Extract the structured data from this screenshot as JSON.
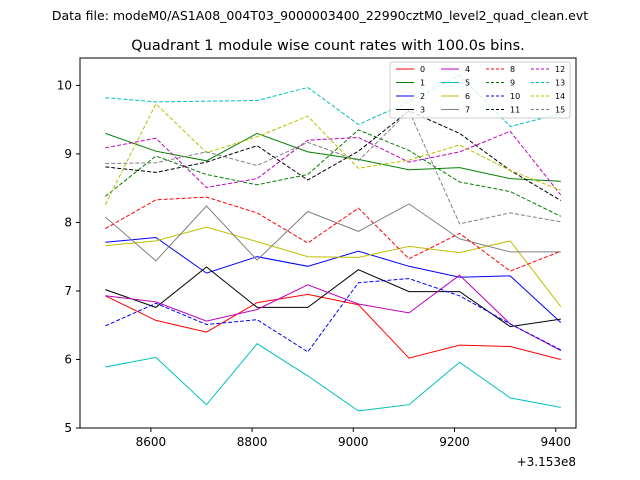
{
  "suptitle": "Data file: modeM0/AS1A08_004T03_9000003400_22990cztM0_level2_quad_clean.evt",
  "chart_data": {
    "type": "line",
    "title": "Quadrant 1 module wise count rates with 100.0s bins.",
    "xlabel": "",
    "ylabel": "",
    "x_offset_label": "+3.153e8",
    "xlim": [
      8460,
      9440
    ],
    "ylim": [
      5,
      10.4
    ],
    "xticks": [
      8600,
      8800,
      9000,
      9200,
      9400
    ],
    "yticks": [
      5,
      6,
      7,
      8,
      9,
      10
    ],
    "grid": false,
    "legend_position": "top-right",
    "legend_columns": 4,
    "x": [
      8510,
      8610,
      8710,
      8810,
      8910,
      9010,
      9110,
      9210,
      9310,
      9410
    ],
    "series": [
      {
        "name": "0",
        "color": "#ff0000",
        "style": "solid",
        "values": [
          6.93,
          6.57,
          6.4,
          6.83,
          6.95,
          6.8,
          6.02,
          6.21,
          6.19,
          6.0
        ]
      },
      {
        "name": "1",
        "color": "#008000",
        "style": "solid",
        "values": [
          9.3,
          9.04,
          8.9,
          9.3,
          9.03,
          8.92,
          8.77,
          8.8,
          8.64,
          8.6
        ]
      },
      {
        "name": "2",
        "color": "#0000ff",
        "style": "solid",
        "values": [
          7.71,
          7.78,
          7.26,
          7.5,
          7.36,
          7.58,
          7.36,
          7.2,
          7.22,
          6.54
        ]
      },
      {
        "name": "3",
        "color": "#000000",
        "style": "solid",
        "values": [
          7.02,
          6.76,
          7.35,
          6.76,
          6.76,
          7.31,
          6.99,
          6.99,
          6.48,
          6.59
        ]
      },
      {
        "name": "4",
        "color": "#bf00bf",
        "style": "solid",
        "values": [
          6.93,
          6.84,
          6.56,
          6.73,
          7.09,
          6.81,
          6.68,
          7.23,
          6.52,
          6.13
        ]
      },
      {
        "name": "5",
        "color": "#00bfbf",
        "style": "solid",
        "values": [
          5.89,
          6.03,
          5.34,
          6.23,
          5.76,
          5.25,
          5.34,
          5.96,
          5.44,
          5.3
        ]
      },
      {
        "name": "6",
        "color": "#bfbf00",
        "style": "solid",
        "values": [
          7.66,
          7.73,
          7.93,
          7.72,
          7.5,
          7.49,
          7.65,
          7.56,
          7.73,
          6.77
        ]
      },
      {
        "name": "7",
        "color": "#808080",
        "style": "solid",
        "values": [
          8.08,
          7.44,
          8.24,
          7.45,
          8.16,
          7.87,
          8.27,
          7.76,
          7.57,
          7.57
        ]
      },
      {
        "name": "8",
        "color": "#ff0000",
        "style": "dashed",
        "values": [
          7.91,
          8.33,
          8.37,
          8.14,
          7.7,
          8.21,
          7.47,
          7.84,
          7.29,
          7.58
        ]
      },
      {
        "name": "9",
        "color": "#008000",
        "style": "dashed",
        "values": [
          8.38,
          8.97,
          8.7,
          8.55,
          8.7,
          9.35,
          9.05,
          8.59,
          8.45,
          8.09
        ]
      },
      {
        "name": "10",
        "color": "#0000ff",
        "style": "dashed",
        "values": [
          6.49,
          6.82,
          6.51,
          6.58,
          6.11,
          7.12,
          7.18,
          6.93,
          6.52,
          6.14
        ]
      },
      {
        "name": "11",
        "color": "#000000",
        "style": "dashed",
        "values": [
          8.81,
          8.73,
          8.88,
          9.12,
          8.62,
          9.04,
          9.63,
          9.3,
          8.76,
          8.32
        ]
      },
      {
        "name": "12",
        "color": "#bf00bf",
        "style": "dashed",
        "values": [
          9.09,
          9.23,
          8.51,
          8.64,
          9.2,
          9.24,
          8.88,
          9.03,
          9.33,
          8.4
        ]
      },
      {
        "name": "13",
        "color": "#00bfbf",
        "style": "dashed",
        "values": [
          9.82,
          9.76,
          9.77,
          9.78,
          9.97,
          9.43,
          9.76,
          10.15,
          9.4,
          9.59
        ]
      },
      {
        "name": "14",
        "color": "#bfbf00",
        "style": "dashed",
        "values": [
          8.26,
          9.73,
          9.02,
          9.25,
          9.55,
          8.79,
          8.91,
          9.13,
          8.76,
          8.47
        ]
      },
      {
        "name": "15",
        "color": "#808080",
        "style": "dashed",
        "values": [
          8.86,
          8.87,
          9.03,
          8.83,
          9.17,
          8.9,
          9.63,
          7.98,
          8.14,
          8.01
        ]
      }
    ]
  }
}
